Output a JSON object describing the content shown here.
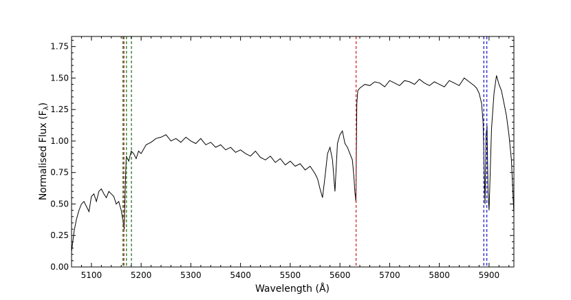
{
  "chart_data": {
    "type": "line",
    "title": "",
    "xlabel": "Wavelength (Å)",
    "ylabel": "Normalised Flux (F",
    "ylabel_sub": "λ",
    "ylabel_end": ")",
    "xlim": [
      5060,
      5950
    ],
    "ylim": [
      0,
      1.83
    ],
    "xticks": [
      5100,
      5200,
      5300,
      5400,
      5500,
      5600,
      5700,
      5800,
      5900
    ],
    "xtick_labels": [
      "5100",
      "5200",
      "5300",
      "5400",
      "5500",
      "5600",
      "5700",
      "5800",
      "5900"
    ],
    "yticks": [
      0,
      0.25,
      0.5,
      0.75,
      1.0,
      1.25,
      1.5,
      1.75
    ],
    "ytick_labels": [
      "0.00",
      "0.25",
      "0.50",
      "0.75",
      "1.00",
      "1.25",
      "1.50",
      "1.75"
    ],
    "grid": false,
    "series": [
      {
        "color": "#000000",
        "x": [
          5060,
          5065,
          5070,
          5075,
          5080,
          5085,
          5090,
          5095,
          5100,
          5105,
          5110,
          5115,
          5120,
          5125,
          5130,
          5135,
          5140,
          5145,
          5150,
          5155,
          5160,
          5162,
          5164,
          5166,
          5168,
          5170,
          5175,
          5180,
          5185,
          5190,
          5195,
          5200,
          5210,
          5220,
          5230,
          5240,
          5250,
          5260,
          5270,
          5280,
          5290,
          5300,
          5310,
          5320,
          5330,
          5340,
          5350,
          5360,
          5370,
          5380,
          5390,
          5400,
          5410,
          5420,
          5430,
          5440,
          5450,
          5460,
          5470,
          5480,
          5490,
          5500,
          5510,
          5520,
          5530,
          5540,
          5550,
          5555,
          5560,
          5565,
          5570,
          5575,
          5580,
          5585,
          5590,
          5595,
          5600,
          5605,
          5610,
          5615,
          5620,
          5625,
          5628,
          5630,
          5632,
          5634,
          5636,
          5640,
          5650,
          5660,
          5670,
          5680,
          5690,
          5700,
          5710,
          5720,
          5730,
          5740,
          5750,
          5760,
          5770,
          5780,
          5790,
          5800,
          5810,
          5820,
          5830,
          5840,
          5850,
          5860,
          5870,
          5875,
          5880,
          5885,
          5888,
          5890,
          5892,
          5894,
          5896,
          5898,
          5900,
          5905,
          5910,
          5915,
          5920,
          5925,
          5930,
          5935,
          5940,
          5945,
          5950
        ],
        "y": [
          0.12,
          0.28,
          0.38,
          0.45,
          0.5,
          0.52,
          0.48,
          0.44,
          0.56,
          0.58,
          0.52,
          0.6,
          0.62,
          0.58,
          0.55,
          0.6,
          0.58,
          0.56,
          0.5,
          0.52,
          0.45,
          0.4,
          0.35,
          0.3,
          0.62,
          0.88,
          0.84,
          0.92,
          0.9,
          0.86,
          0.92,
          0.9,
          0.97,
          0.99,
          1.02,
          1.03,
          1.05,
          1.0,
          1.02,
          0.99,
          1.03,
          1.0,
          0.98,
          1.02,
          0.97,
          0.99,
          0.95,
          0.97,
          0.93,
          0.95,
          0.91,
          0.93,
          0.9,
          0.88,
          0.92,
          0.87,
          0.85,
          0.88,
          0.83,
          0.86,
          0.81,
          0.84,
          0.8,
          0.82,
          0.77,
          0.8,
          0.74,
          0.7,
          0.62,
          0.55,
          0.72,
          0.9,
          0.95,
          0.85,
          0.6,
          0.98,
          1.05,
          1.08,
          0.98,
          0.95,
          0.9,
          0.85,
          0.72,
          0.6,
          0.52,
          1.3,
          1.4,
          1.42,
          1.45,
          1.44,
          1.47,
          1.46,
          1.43,
          1.48,
          1.46,
          1.44,
          1.48,
          1.47,
          1.45,
          1.49,
          1.46,
          1.44,
          1.47,
          1.45,
          1.43,
          1.48,
          1.46,
          1.44,
          1.5,
          1.47,
          1.44,
          1.42,
          1.38,
          1.3,
          1.15,
          0.8,
          0.5,
          1.05,
          1.12,
          0.6,
          0.45,
          1.1,
          1.38,
          1.52,
          1.45,
          1.4,
          1.3,
          1.2,
          1.05,
          0.85,
          0.42
        ]
      }
    ],
    "vlines": [
      {
        "x": 5163.5,
        "color": "#1f7a1f",
        "style": "dashed"
      },
      {
        "x": 5165.5,
        "color": "#d62728",
        "style": "dashed"
      },
      {
        "x": 5170.5,
        "color": "#1f7a1f",
        "style": "dashed"
      },
      {
        "x": 5180.5,
        "color": "#1f7a1f",
        "style": "dashed"
      },
      {
        "x": 5632.5,
        "color": "#d62728",
        "style": "dashed"
      },
      {
        "x": 5889.5,
        "color": "#1f1fcf",
        "style": "dashed"
      },
      {
        "x": 5895.5,
        "color": "#1f1fcf",
        "style": "dashed"
      }
    ]
  }
}
